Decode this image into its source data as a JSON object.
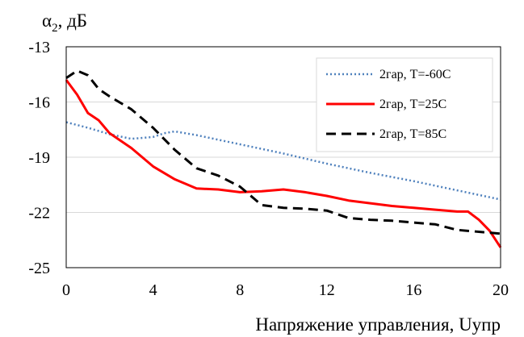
{
  "chart_data": {
    "type": "line",
    "title": "",
    "ylabel": "α₂, дБ",
    "xlabel": "Напряжение управления, Uупр",
    "xlim": [
      0,
      20
    ],
    "ylim": [
      -25,
      -13
    ],
    "xticks": [
      0,
      4,
      8,
      12,
      16,
      20
    ],
    "yticks": [
      -13,
      -16,
      -19,
      -22,
      -25
    ],
    "grid": "horizontal",
    "legend_position": "top-right",
    "series": [
      {
        "name": "2гар, T=-60C",
        "color": "#4f81bd",
        "style": "dotted",
        "x": [
          0,
          1,
          2,
          3,
          4,
          4.5,
          5,
          6,
          8,
          10,
          12,
          14,
          16,
          18,
          20
        ],
        "y": [
          -17.1,
          -17.4,
          -17.75,
          -18.0,
          -17.9,
          -17.7,
          -17.6,
          -17.8,
          -18.3,
          -18.8,
          -19.35,
          -19.85,
          -20.3,
          -20.8,
          -21.3
        ]
      },
      {
        "name": "2гар, T=25C",
        "color": "#ff0000",
        "style": "solid",
        "x": [
          0,
          0.5,
          1,
          1.5,
          2,
          3,
          4,
          5,
          6,
          7,
          8,
          9,
          10,
          11,
          12,
          13,
          14,
          15,
          16,
          17,
          18,
          18.5,
          19,
          19.5,
          20
        ],
        "y": [
          -14.8,
          -15.6,
          -16.6,
          -17.0,
          -17.7,
          -18.5,
          -19.5,
          -20.2,
          -20.7,
          -20.75,
          -20.9,
          -20.85,
          -20.75,
          -20.9,
          -21.1,
          -21.35,
          -21.5,
          -21.65,
          -21.75,
          -21.85,
          -21.95,
          -21.95,
          -22.4,
          -23.0,
          -23.9
        ]
      },
      {
        "name": "2гар, T=85C",
        "color": "#000000",
        "style": "dashed",
        "x": [
          0,
          0.5,
          1,
          1.5,
          2,
          3,
          4,
          5,
          6,
          7,
          8,
          9,
          10,
          11,
          12,
          13,
          14,
          15,
          16,
          17,
          18,
          19,
          20
        ],
        "y": [
          -14.7,
          -14.3,
          -14.55,
          -15.3,
          -15.7,
          -16.4,
          -17.4,
          -18.6,
          -19.6,
          -20.0,
          -20.6,
          -21.6,
          -21.75,
          -21.8,
          -21.9,
          -22.3,
          -22.4,
          -22.45,
          -22.55,
          -22.65,
          -22.95,
          -23.05,
          -23.15
        ]
      }
    ]
  }
}
